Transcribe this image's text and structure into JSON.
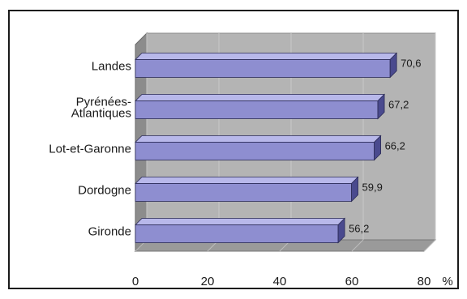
{
  "chart_data": {
    "type": "bar",
    "orientation": "horizontal",
    "style": "3d",
    "categories": [
      "Landes",
      "Pyrénées-Atlantiques",
      "Lot-et-Garonne",
      "Dordogne",
      "Gironde"
    ],
    "category_lines": [
      [
        "Landes"
      ],
      [
        "Pyrénées-",
        "Atlantiques"
      ],
      [
        "Lot-et-Garonne"
      ],
      [
        "Dordogne"
      ],
      [
        "Gironde"
      ]
    ],
    "values": [
      70.6,
      67.2,
      66.2,
      59.9,
      56.2
    ],
    "value_labels": [
      "70,6",
      "67,2",
      "66,2",
      "59,9",
      "56,2"
    ],
    "x_ticks": [
      "0",
      "20",
      "40",
      "60",
      "80"
    ],
    "xlim": [
      0,
      80
    ],
    "unit_label": "%",
    "grid": true,
    "colors": {
      "bar_front": "#8e8ed0",
      "bar_top": "#b8b8ea",
      "bar_side": "#4a4a8e",
      "wall": "#b4b4b4",
      "floor": "#9a9a9a",
      "gridline": "#c8c8c8"
    }
  }
}
